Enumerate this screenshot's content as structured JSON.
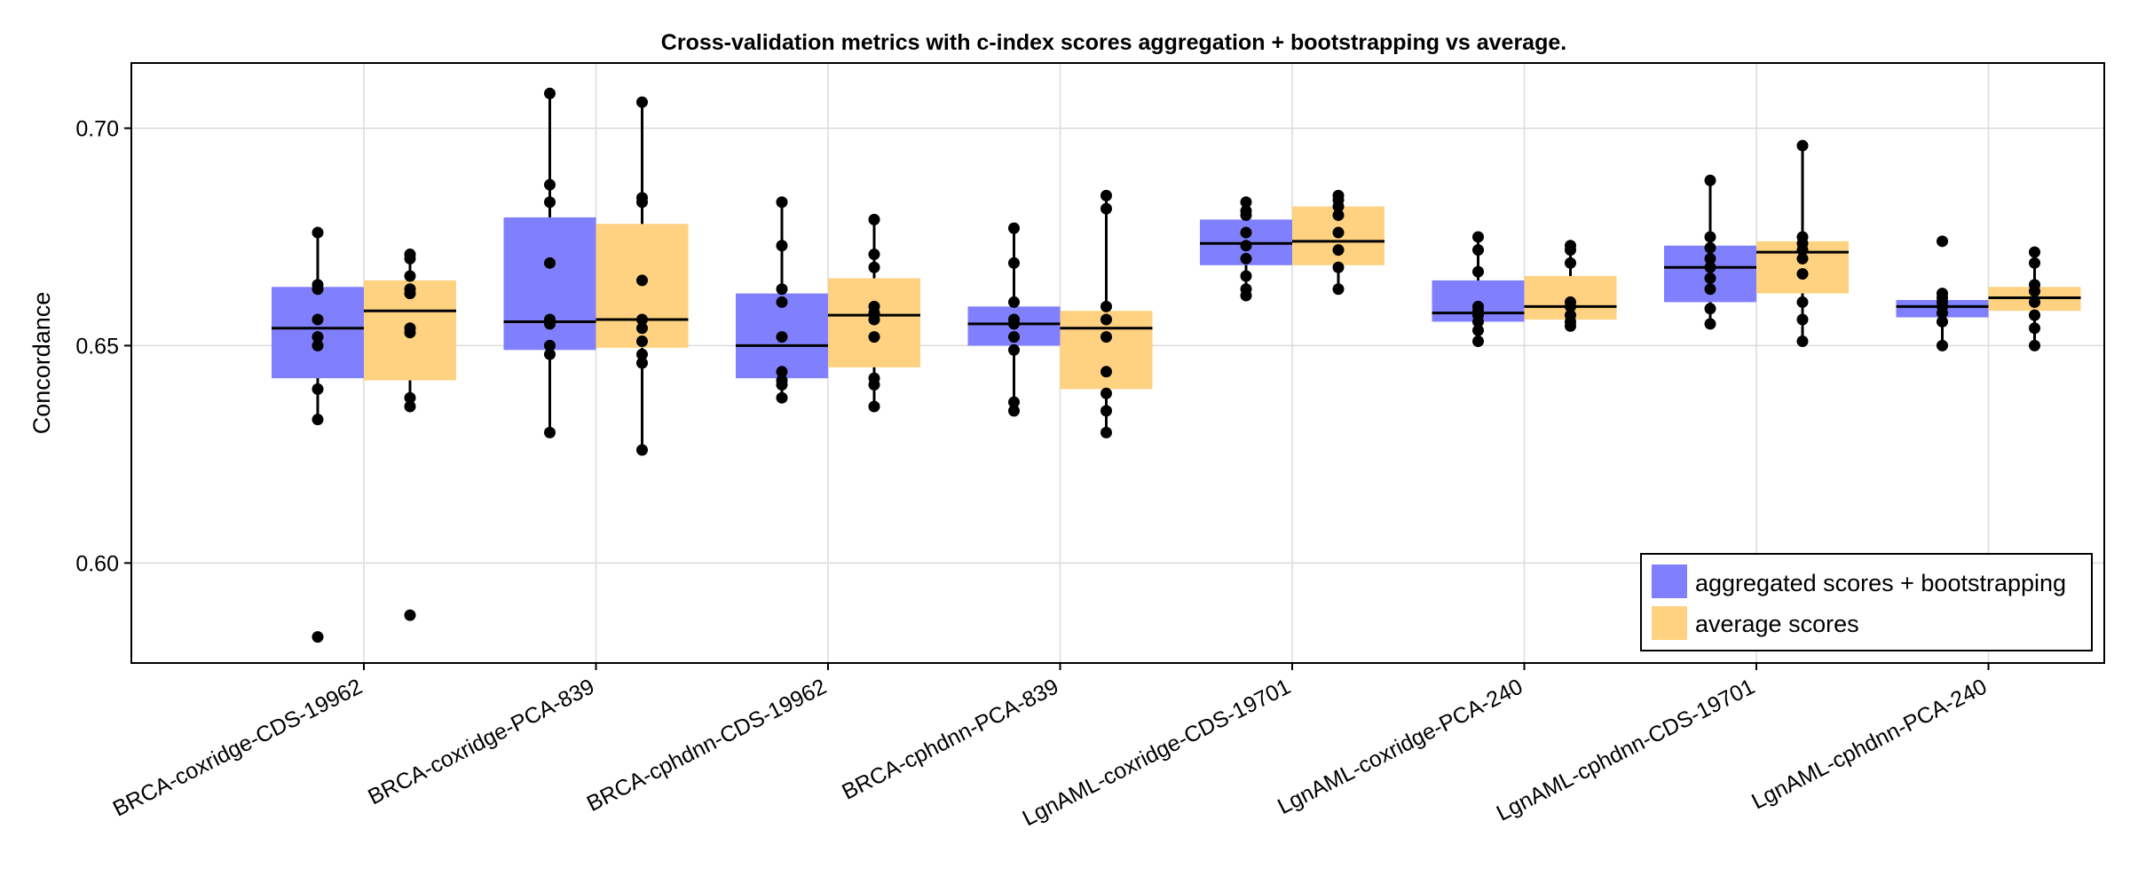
{
  "chart_data": {
    "type": "box",
    "title": "Cross-validation metrics with c-index scores aggregation + bootstrapping vs average.",
    "xlabel": "",
    "ylabel": "Concordance",
    "ylim": [
      0.577,
      0.715
    ],
    "yticks": [
      0.6,
      0.65,
      0.7
    ],
    "ytick_labels": [
      "0.60",
      "0.65",
      "0.70"
    ],
    "grid": true,
    "legend_position": "bottom-right",
    "colors": {
      "aggregated": "#8080ff",
      "average": "#fed280",
      "points": "#000000"
    },
    "categories": [
      "BRCA-coxridge-CDS-19962",
      "BRCA-coxridge-PCA-839",
      "BRCA-cphdnn-CDS-19962",
      "BRCA-cphdnn-PCA-839",
      "LgnAML-coxridge-CDS-19701",
      "LgnAML-coxridge-PCA-240",
      "LgnAML-cphdnn-CDS-19701",
      "LgnAML-cphdnn-PCA-240"
    ],
    "series": [
      {
        "name": "aggregated scores + bootstrapping",
        "color": "#8080ff",
        "boxes": [
          {
            "q1": 0.6425,
            "median": 0.654,
            "q3": 0.6635,
            "whisker_low": 0.633,
            "whisker_high": 0.676
          },
          {
            "q1": 0.649,
            "median": 0.6555,
            "q3": 0.6795,
            "whisker_low": 0.63,
            "whisker_high": 0.708
          },
          {
            "q1": 0.6425,
            "median": 0.65,
            "q3": 0.662,
            "whisker_low": 0.638,
            "whisker_high": 0.683
          },
          {
            "q1": 0.65,
            "median": 0.655,
            "q3": 0.659,
            "whisker_low": 0.635,
            "whisker_high": 0.677
          },
          {
            "q1": 0.6685,
            "median": 0.6735,
            "q3": 0.679,
            "whisker_low": 0.6615,
            "whisker_high": 0.683
          },
          {
            "q1": 0.6555,
            "median": 0.6575,
            "q3": 0.665,
            "whisker_low": 0.651,
            "whisker_high": 0.675
          },
          {
            "q1": 0.66,
            "median": 0.668,
            "q3": 0.673,
            "whisker_low": 0.655,
            "whisker_high": 0.688
          },
          {
            "q1": 0.6565,
            "median": 0.659,
            "q3": 0.6605,
            "whisker_low": 0.65,
            "whisker_high": 0.6625
          }
        ],
        "points": [
          [
            0.583,
            0.633,
            0.64,
            0.65,
            0.652,
            0.656,
            0.663,
            0.664,
            0.676
          ],
          [
            0.63,
            0.648,
            0.65,
            0.655,
            0.656,
            0.669,
            0.683,
            0.687,
            0.708
          ],
          [
            0.638,
            0.641,
            0.642,
            0.644,
            0.652,
            0.66,
            0.663,
            0.673,
            0.683
          ],
          [
            0.635,
            0.637,
            0.649,
            0.652,
            0.655,
            0.656,
            0.66,
            0.669,
            0.677
          ],
          [
            0.6615,
            0.663,
            0.666,
            0.67,
            0.673,
            0.676,
            0.68,
            0.681,
            0.683
          ],
          [
            0.651,
            0.6535,
            0.6555,
            0.657,
            0.658,
            0.659,
            0.667,
            0.672,
            0.675
          ],
          [
            0.655,
            0.6585,
            0.663,
            0.6655,
            0.668,
            0.67,
            0.6725,
            0.675,
            0.688
          ],
          [
            0.65,
            0.6555,
            0.6575,
            0.659,
            0.66,
            0.661,
            0.662,
            0.674
          ]
        ]
      },
      {
        "name": "average scores",
        "color": "#fed280",
        "boxes": [
          {
            "q1": 0.642,
            "median": 0.658,
            "q3": 0.665,
            "whisker_low": 0.636,
            "whisker_high": 0.671
          },
          {
            "q1": 0.6495,
            "median": 0.656,
            "q3": 0.678,
            "whisker_low": 0.626,
            "whisker_high": 0.706
          },
          {
            "q1": 0.645,
            "median": 0.657,
            "q3": 0.6655,
            "whisker_low": 0.636,
            "whisker_high": 0.679
          },
          {
            "q1": 0.64,
            "median": 0.654,
            "q3": 0.658,
            "whisker_low": 0.63,
            "whisker_high": 0.6845
          },
          {
            "q1": 0.6685,
            "median": 0.674,
            "q3": 0.682,
            "whisker_low": 0.663,
            "whisker_high": 0.6845
          },
          {
            "q1": 0.656,
            "median": 0.659,
            "q3": 0.666,
            "whisker_low": 0.6545,
            "whisker_high": 0.673
          },
          {
            "q1": 0.662,
            "median": 0.6715,
            "q3": 0.674,
            "whisker_low": 0.651,
            "whisker_high": 0.696
          },
          {
            "q1": 0.658,
            "median": 0.661,
            "q3": 0.6635,
            "whisker_low": 0.65,
            "whisker_high": 0.6715
          }
        ],
        "points": [
          [
            0.588,
            0.636,
            0.638,
            0.653,
            0.654,
            0.662,
            0.663,
            0.666,
            0.67,
            0.671
          ],
          [
            0.626,
            0.646,
            0.648,
            0.651,
            0.654,
            0.656,
            0.665,
            0.683,
            0.684,
            0.706
          ],
          [
            0.636,
            0.641,
            0.6425,
            0.652,
            0.656,
            0.6575,
            0.659,
            0.668,
            0.671,
            0.679
          ],
          [
            0.63,
            0.635,
            0.639,
            0.644,
            0.652,
            0.656,
            0.659,
            0.6815,
            0.6845
          ],
          [
            0.663,
            0.668,
            0.672,
            0.676,
            0.68,
            0.682,
            0.6835,
            0.6845
          ],
          [
            0.6545,
            0.6555,
            0.657,
            0.659,
            0.66,
            0.669,
            0.672,
            0.673
          ],
          [
            0.651,
            0.656,
            0.66,
            0.6665,
            0.67,
            0.672,
            0.6735,
            0.675,
            0.696
          ],
          [
            0.65,
            0.654,
            0.657,
            0.66,
            0.6625,
            0.664,
            0.669,
            0.6715
          ]
        ]
      }
    ]
  }
}
